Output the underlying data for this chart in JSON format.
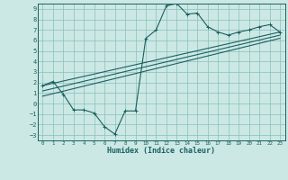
{
  "title": "",
  "xlabel": "Humidex (Indice chaleur)",
  "bg_color": "#cce8e4",
  "grid_color": "#88bfba",
  "line_color": "#1a6060",
  "xlim": [
    -0.5,
    23.5
  ],
  "ylim": [
    -3.5,
    9.5
  ],
  "xticks": [
    0,
    1,
    2,
    3,
    4,
    5,
    6,
    7,
    8,
    9,
    10,
    11,
    12,
    13,
    14,
    15,
    16,
    17,
    18,
    19,
    20,
    21,
    22,
    23
  ],
  "yticks": [
    -3,
    -2,
    -1,
    0,
    1,
    2,
    3,
    4,
    5,
    6,
    7,
    8,
    9
  ],
  "series1_x": [
    0,
    1,
    2,
    3,
    4,
    5,
    6,
    7,
    8,
    9,
    10,
    11,
    12,
    13,
    14,
    15,
    16,
    17,
    18,
    19,
    20,
    21,
    22,
    23
  ],
  "series1_y": [
    1.7,
    2.1,
    0.9,
    -0.6,
    -0.6,
    -0.9,
    -2.2,
    -2.9,
    -0.7,
    -0.7,
    6.2,
    7.0,
    9.3,
    9.5,
    8.5,
    8.6,
    7.3,
    6.8,
    6.5,
    6.8,
    7.0,
    7.3,
    7.5,
    6.8
  ],
  "line2": [
    [
      0,
      23
    ],
    [
      1.7,
      6.8
    ]
  ],
  "line3": [
    [
      0,
      23
    ],
    [
      1.2,
      6.5
    ]
  ],
  "line4": [
    [
      0,
      23
    ],
    [
      0.7,
      6.2
    ]
  ]
}
